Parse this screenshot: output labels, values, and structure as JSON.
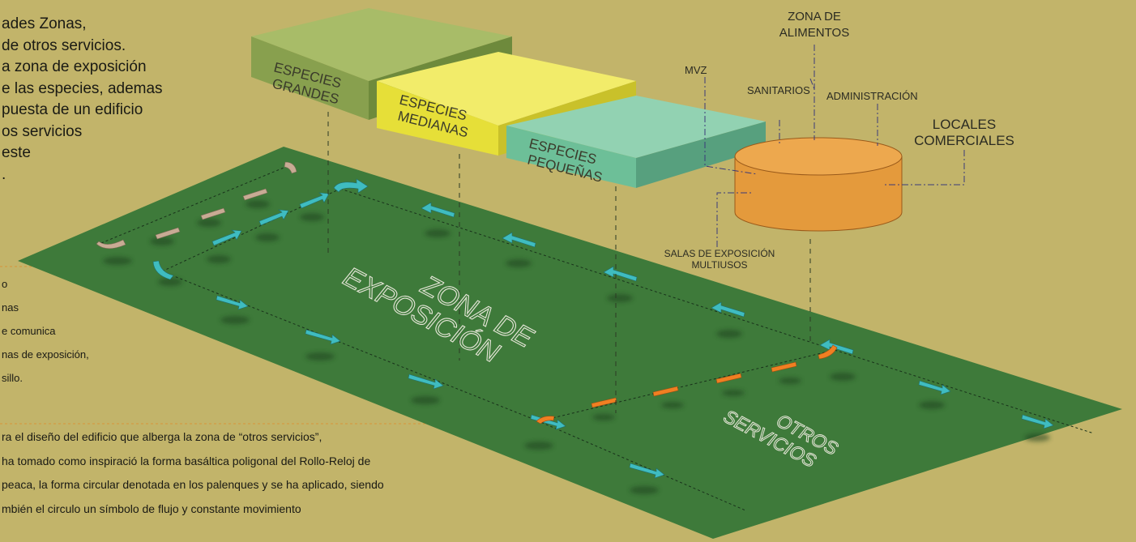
{
  "intro_lines": [
    "ades Zonas,",
    "de otros servicios.",
    "a zona de exposición",
    "e las especies, ademas",
    "puesta de un edificio",
    "os servicios",
    "este",
    "."
  ],
  "middle_lines": [
    "o",
    "nas",
    "e comunica",
    "nas de exposición,",
    "sillo."
  ],
  "bottom_lines": [
    "ra el diseño del edificio que alberga la zona de “otros servicios”,",
    " ha tomado como inspiració la forma basáltica poligonal del Rollo-Reloj de",
    "peaca, la forma circular denotada en los palenques y se ha aplicado, siendo",
    "mbién  el circulo un símbolo de flujo y constante movimiento"
  ],
  "blocks": {
    "grandes": [
      "ESPECIES",
      "GRANDES"
    ],
    "medianas": [
      "ESPECIES",
      "MEDIANAS"
    ],
    "pequenas": [
      "ESPECIES",
      "PEQUEÑAS"
    ]
  },
  "labels": {
    "zona_alimentos": [
      "ZONA DE",
      "ALIMENTOS"
    ],
    "mvz": "MVZ",
    "sanitarios": "SANITARIOS",
    "administracion": "ADMINISTRACIÓN",
    "locales": [
      "LOCALES",
      "COMERCIALES"
    ],
    "salas": [
      "SALAS DE EXPOSICIÓN",
      "MULTIUSOS"
    ]
  },
  "zones": {
    "exposicion": [
      "ZONA DE",
      "EXPOSICIÓN"
    ],
    "otros": [
      "OTROS",
      "SERVICIOS"
    ]
  },
  "colors": {
    "background": "#c2b46a",
    "ground": "#3e7a3a",
    "block_grandes": "#88a04e",
    "block_medianas": "#e6df38",
    "block_pequenas": "#6dbf98",
    "cylinder": "#e49a3c",
    "arrow_teal": "#3fbcc0",
    "arrow_orange": "#f07f22",
    "arrow_beige": "#c8ab94"
  }
}
